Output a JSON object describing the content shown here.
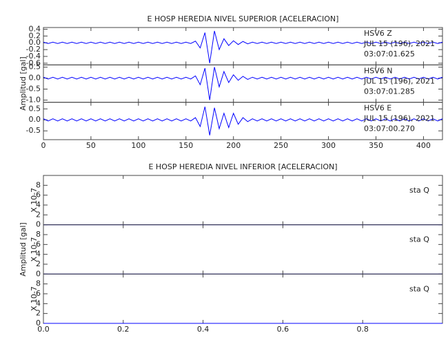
{
  "chart_data": [
    {
      "type": "line",
      "title": "E HOSP HEREDIA NIVEL SUPERIOR [ACELERACION]",
      "ylabel": "Amplitud [gal]",
      "xlim": [
        0,
        420
      ],
      "xticks": [
        0,
        50,
        100,
        150,
        200,
        250,
        300,
        350,
        400
      ],
      "x": [
        0,
        5,
        10,
        15,
        20,
        25,
        30,
        35,
        40,
        45,
        50,
        55,
        60,
        65,
        70,
        75,
        80,
        85,
        90,
        95,
        100,
        105,
        110,
        115,
        120,
        125,
        130,
        135,
        140,
        145,
        150,
        155,
        160,
        165,
        170,
        175,
        180,
        185,
        190,
        195,
        200,
        205,
        210,
        215,
        220,
        225,
        230,
        235,
        240,
        245,
        250,
        255,
        260,
        265,
        270,
        275,
        280,
        285,
        290,
        295,
        300,
        305,
        310,
        315,
        320,
        325,
        330,
        335,
        340,
        345,
        350,
        355,
        360,
        365,
        370,
        375,
        380,
        385,
        390,
        395,
        400,
        405,
        410,
        415,
        420
      ],
      "series": [
        {
          "name": "HSV6 Z",
          "date": "JUL 15 (196), 2021",
          "time": "03:07:01.625",
          "color": "#0000ff",
          "ylim": [
            -0.65,
            0.45
          ],
          "yticks": [
            0.4,
            0.2,
            {
              "value": 0,
              "label": "0.0"
            },
            -0.2,
            -0.4,
            -0.6
          ],
          "values": [
            0.02,
            -0.02,
            0.02,
            -0.02,
            0.02,
            -0.02,
            0.02,
            -0.02,
            0.02,
            -0.02,
            0.02,
            -0.02,
            0.02,
            -0.02,
            0.02,
            -0.02,
            0.02,
            -0.02,
            0.02,
            -0.02,
            0.02,
            -0.02,
            0.02,
            -0.02,
            0.02,
            -0.02,
            0.02,
            -0.02,
            0.02,
            -0.02,
            0.02,
            -0.02,
            0.05,
            -0.15,
            0.3,
            -0.6,
            0.35,
            -0.2,
            0.12,
            -0.08,
            0.06,
            -0.05,
            0.04,
            -0.03,
            0.02,
            -0.02,
            0.02,
            -0.02,
            0.02,
            -0.02,
            0.02,
            -0.02,
            0.02,
            -0.02,
            0.02,
            -0.02,
            0.02,
            -0.02,
            0.02,
            -0.02,
            0.02,
            -0.02,
            0.02,
            -0.02,
            0.02,
            -0.02,
            0.02,
            -0.02,
            0.02,
            -0.02,
            0.02,
            -0.02,
            0.02,
            -0.02,
            0.02,
            -0.02,
            0.02,
            -0.02,
            0.02,
            -0.02,
            0.02,
            -0.02,
            0.02,
            -0.02,
            0.02
          ]
        },
        {
          "name": "HSV6 N",
          "date": "JUL 15 (196), 2021",
          "time": "03:07:01.285",
          "color": "#0000ff",
          "ylim": [
            -1.1,
            0.6
          ],
          "yticks": [
            0.5,
            {
              "value": 0,
              "label": "0.0"
            },
            -0.5,
            {
              "value": -1,
              "label": "-1.0"
            }
          ],
          "values": [
            0.04,
            -0.04,
            0.04,
            -0.04,
            0.04,
            -0.04,
            0.04,
            -0.04,
            0.04,
            -0.04,
            0.04,
            -0.04,
            0.04,
            -0.04,
            0.04,
            -0.04,
            0.04,
            -0.04,
            0.04,
            -0.04,
            0.04,
            -0.04,
            0.04,
            -0.04,
            0.04,
            -0.04,
            0.04,
            -0.04,
            0.04,
            -0.04,
            0.04,
            -0.04,
            0.1,
            -0.3,
            0.45,
            -1.0,
            0.5,
            -0.4,
            0.3,
            -0.2,
            0.15,
            -0.1,
            0.08,
            -0.06,
            0.04,
            -0.04,
            0.04,
            -0.04,
            0.04,
            -0.04,
            0.04,
            -0.04,
            0.04,
            -0.04,
            0.04,
            -0.04,
            0.04,
            -0.04,
            0.04,
            -0.04,
            0.04,
            -0.04,
            0.04,
            -0.04,
            0.04,
            -0.04,
            0.04,
            -0.04,
            0.04,
            -0.04,
            0.04,
            -0.04,
            0.04,
            -0.04,
            0.04,
            -0.04,
            0.04,
            -0.04,
            0.04,
            -0.04,
            0.04,
            -0.04,
            0.04,
            -0.04,
            0.04
          ]
        },
        {
          "name": "HSV6 E",
          "date": "JUL 15 (196), 2021",
          "time": "03:07:00.270",
          "color": "#0000ff",
          "ylim": [
            -0.9,
            0.8
          ],
          "yticks": [
            0.5,
            {
              "value": 0,
              "label": "0.0"
            },
            -0.5
          ],
          "values": [
            0.05,
            -0.05,
            0.05,
            -0.05,
            0.05,
            -0.05,
            0.05,
            -0.05,
            0.05,
            -0.05,
            0.05,
            -0.05,
            0.05,
            -0.05,
            0.05,
            -0.05,
            0.05,
            -0.05,
            0.05,
            -0.05,
            0.05,
            -0.05,
            0.05,
            -0.05,
            0.05,
            -0.05,
            0.05,
            -0.05,
            0.05,
            -0.05,
            0.05,
            -0.05,
            0.1,
            -0.3,
            0.6,
            -0.7,
            0.55,
            -0.4,
            0.3,
            -0.35,
            0.3,
            -0.2,
            0.1,
            -0.08,
            0.05,
            -0.05,
            0.05,
            -0.05,
            0.05,
            -0.05,
            0.05,
            -0.05,
            0.05,
            -0.05,
            0.05,
            -0.05,
            0.05,
            -0.05,
            0.05,
            -0.05,
            0.05,
            -0.05,
            0.05,
            -0.05,
            0.05,
            -0.05,
            0.05,
            -0.05,
            0.05,
            -0.05,
            0.05,
            -0.05,
            0.05,
            -0.05,
            0.05,
            -0.05,
            0.05,
            -0.05,
            0.05,
            -0.05,
            0.05,
            -0.05,
            0.05,
            -0.05,
            0.05
          ]
        }
      ]
    },
    {
      "type": "line",
      "title": "E HOSP HEREDIA NIVEL INFERIOR [ACELERACION]",
      "ylabel": "Amplitud [gal]",
      "xlim": [
        0,
        1
      ],
      "xticks": [
        {
          "value": 0,
          "label": "0.0"
        },
        0.2,
        0.4,
        0.6,
        0.8
      ],
      "x": [
        0,
        1
      ],
      "series": [
        {
          "name": "sta Q",
          "unit_label": "X 10-7",
          "color": "#0000ff",
          "ylim": [
            0,
            10
          ],
          "yticks": [
            0,
            2,
            4,
            6,
            8
          ],
          "values": [
            0,
            0
          ]
        },
        {
          "name": "sta Q",
          "unit_label": "X 10-7",
          "color": "#0000ff",
          "ylim": [
            0,
            10
          ],
          "yticks": [
            0,
            2,
            4,
            6,
            8
          ],
          "values": [
            0,
            0
          ]
        },
        {
          "name": "sta Q",
          "unit_label": "X 10-7",
          "color": "#0000ff",
          "ylim": [
            0,
            10
          ],
          "yticks": [
            0,
            2,
            4,
            6,
            8
          ],
          "values": [
            0,
            0
          ]
        }
      ]
    }
  ]
}
